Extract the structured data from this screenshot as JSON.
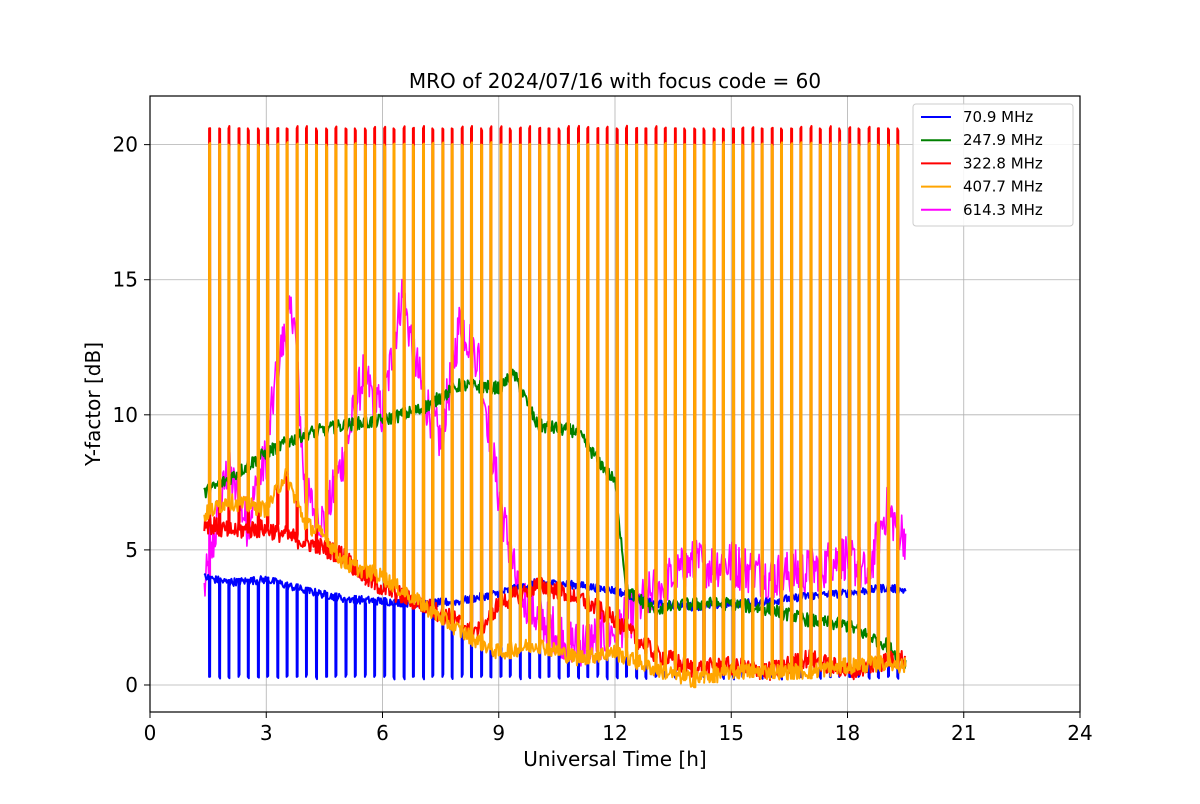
{
  "chart_data": {
    "type": "line",
    "title": "MRO of 2024/07/16 with focus code = 60",
    "xlabel": "Universal Time [h]",
    "ylabel": "Y-factor [dB]",
    "xlim": [
      0,
      24
    ],
    "ylim": [
      -1,
      21.8
    ],
    "x_ticks": [
      0,
      3,
      6,
      9,
      12,
      15,
      18,
      21,
      24
    ],
    "y_ticks": [
      0,
      5,
      10,
      15,
      20
    ],
    "grid": true,
    "legend": "top-right",
    "calibration_pulse_spacing_h": 0.25,
    "series": [
      {
        "name": " 70.9 MHz",
        "color": "#0000ff",
        "x": [
          1.4,
          2,
          3,
          4,
          5,
          6,
          7,
          8,
          9,
          10,
          11,
          12,
          13,
          14,
          15,
          16,
          17,
          18,
          19,
          19.5
        ],
        "y": [
          4.0,
          3.8,
          3.9,
          3.5,
          3.2,
          3.1,
          3.0,
          3.1,
          3.4,
          3.8,
          3.7,
          3.5,
          3.0,
          2.9,
          3.0,
          3.1,
          3.3,
          3.4,
          3.6,
          3.5
        ],
        "pulse_low": 0.3
      },
      {
        "name": " 247.9 MHz",
        "color": "#008000",
        "x": [
          1.4,
          2,
          3,
          4,
          5,
          6,
          7,
          8,
          9,
          9.4,
          10,
          11,
          12,
          12.3,
          13,
          14,
          15,
          16,
          17,
          18,
          19,
          19.5
        ],
        "y": [
          7.1,
          7.6,
          8.6,
          9.3,
          9.6,
          9.8,
          10.2,
          11.1,
          11.0,
          11.5,
          9.6,
          9.4,
          7.5,
          3.5,
          2.8,
          3.0,
          3.0,
          2.8,
          2.4,
          2.2,
          1.5,
          0.8
        ]
      },
      {
        "name": " 322.8 MHz",
        "color": "#ff0000",
        "x": [
          1.4,
          2,
          3,
          4,
          5,
          5.5,
          6,
          7,
          8,
          8.5,
          9,
          10,
          11,
          12,
          13,
          14,
          15,
          16,
          17,
          18,
          19,
          19.5
        ],
        "y": [
          6.0,
          5.7,
          5.8,
          5.3,
          4.8,
          4.0,
          3.6,
          3.0,
          2.3,
          2.0,
          3.0,
          3.7,
          3.3,
          2.4,
          1.2,
          0.6,
          0.7,
          0.5,
          1.0,
          0.5,
          0.9,
          1.0
        ],
        "pulse_high": 20.6
      },
      {
        "name": " 407.7 MHz",
        "color": "#ffa500",
        "x": [
          1.4,
          2,
          3,
          3.5,
          4,
          4.5,
          5,
          6,
          7,
          8,
          9,
          10,
          11,
          12,
          13,
          14,
          15,
          16,
          17,
          18,
          19,
          19.5
        ],
        "y": [
          6.3,
          6.8,
          6.5,
          7.8,
          6.0,
          5.5,
          4.5,
          4.0,
          3.0,
          2.0,
          1.2,
          1.5,
          1.0,
          1.2,
          0.6,
          0.2,
          0.5,
          0.5,
          0.5,
          0.7,
          0.8,
          0.7
        ],
        "pulse_high": 20.0
      },
      {
        "name": " 614.3 MHz",
        "color": "#ff00ff",
        "x": [
          1.4,
          2,
          2.5,
          3,
          3.3,
          3.7,
          4,
          4.5,
          5,
          5.5,
          6,
          6.5,
          7,
          7.5,
          8,
          8.5,
          9,
          9.5,
          10,
          11,
          12,
          13,
          14,
          15,
          16,
          17,
          18,
          18.5,
          19,
          19.5
        ],
        "y": [
          3.5,
          8.0,
          6.0,
          8.5,
          12.0,
          14.0,
          7.0,
          6.0,
          8.5,
          11.5,
          10.0,
          14.5,
          11.0,
          9.0,
          13.5,
          12.0,
          7.0,
          3.5,
          2.5,
          1.5,
          2.0,
          3.5,
          4.5,
          4.5,
          4.0,
          4.2,
          4.8,
          4.0,
          6.5,
          5.5
        ],
        "pulse_high": 10.8
      }
    ]
  }
}
